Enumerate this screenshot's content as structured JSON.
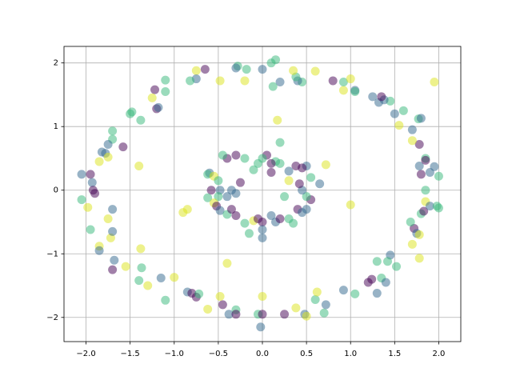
{
  "chart_data": {
    "type": "scatter",
    "grid": true,
    "alpha": 0.5,
    "xlim": [
      -2.25,
      2.25
    ],
    "ylim": [
      -2.38,
      2.26
    ],
    "xticks": [
      {
        "value": -2.0,
        "label": "−2.0"
      },
      {
        "value": -1.5,
        "label": "−1.5"
      },
      {
        "value": -1.0,
        "label": "−1.0"
      },
      {
        "value": -0.5,
        "label": "−0.5"
      },
      {
        "value": 0.0,
        "label": "0.0"
      },
      {
        "value": 0.5,
        "label": "0.5"
      },
      {
        "value": 1.0,
        "label": "1.0"
      },
      {
        "value": 1.5,
        "label": "1.5"
      },
      {
        "value": 2.0,
        "label": "2.0"
      }
    ],
    "yticks": [
      {
        "value": -2,
        "label": "−2"
      },
      {
        "value": -1,
        "label": "−1"
      },
      0,
      1,
      2
    ],
    "x": [
      -2.05,
      -1.95,
      -1.93,
      -1.92,
      -1.9,
      -2.05,
      -1.98,
      -1.95,
      -1.85,
      -1.85,
      -1.72,
      -1.7,
      -1.7,
      -1.75,
      -1.68,
      -1.7,
      -1.55,
      -1.4,
      -1.38,
      -1.37,
      -1.3,
      -1.15,
      -1.1,
      -1.0,
      -0.85,
      -0.8,
      -0.75,
      -0.72,
      -0.62,
      -0.45,
      -0.48,
      -0.38,
      -0.3,
      -0.3,
      -0.05,
      0.0,
      0.0,
      -0.02,
      0.25,
      0.38,
      0.48,
      0.5,
      0.6,
      0.62,
      0.7,
      0.72,
      0.92,
      1.05,
      1.2,
      1.24,
      1.3,
      1.35,
      1.4,
      1.45,
      1.42,
      1.3,
      1.52,
      1.7,
      1.72,
      1.75,
      1.78,
      1.78,
      1.68,
      1.8,
      1.83,
      1.85,
      1.9,
      2.0,
      1.98,
      1.85,
      1.9,
      1.95,
      2.0,
      1.8,
      1.78,
      1.85,
      1.85,
      1.78,
      1.7,
      1.7,
      1.77,
      1.8,
      1.55,
      1.6,
      1.5,
      1.45,
      1.38,
      1.32,
      1.25,
      1.35,
      1.05,
      1.05,
      0.92,
      0.92,
      1.0,
      0.8,
      1.95,
      0.6,
      0.45,
      0.4,
      0.38,
      0.35,
      0.2,
      0.15,
      0.1,
      0.0,
      0.12,
      -0.18,
      -0.28,
      -0.3,
      -0.2,
      -0.48,
      -0.65,
      -0.75,
      -0.75,
      -0.82,
      -1.1,
      -1.1,
      -1.2,
      -1.18,
      -1.22,
      -1.25,
      -1.38,
      -1.5,
      -1.48,
      -1.58,
      -1.7,
      -1.7,
      -1.75,
      -1.82,
      -1.78,
      -1.75,
      -1.85,
      -1.4,
      0.17,
      -0.9,
      -0.85,
      -0.4,
      1.0,
      0.72,
      -0.6,
      -0.62,
      -0.55,
      -0.5,
      -0.58,
      -0.48,
      -0.5,
      -0.62,
      -0.55,
      -0.52,
      -0.48,
      -0.4,
      -0.35,
      -0.3,
      -0.2,
      -0.1,
      -0.05,
      0.0,
      0.0,
      0.0,
      -0.15,
      0.1,
      0.15,
      0.2,
      0.3,
      0.35,
      0.4,
      0.45,
      0.5,
      0.55,
      0.5,
      0.45,
      0.42,
      0.55,
      0.5,
      0.45,
      0.38,
      0.3,
      0.2,
      0.15,
      0.1,
      0.05,
      0.0,
      -0.05,
      -0.1,
      -0.2,
      -0.3,
      -0.4,
      -0.45,
      -0.25,
      -0.3,
      0.2,
      0.1,
      -0.35,
      0.25,
      0.3,
      0.65,
      -0.4
    ],
    "y": [
      0.25,
      0.25,
      0.12,
      0.0,
      -0.05,
      -0.15,
      -0.27,
      -0.62,
      -0.88,
      -0.95,
      -0.75,
      -0.65,
      -0.3,
      -0.45,
      -1.1,
      -1.25,
      -1.2,
      -1.42,
      -0.92,
      -1.22,
      -1.5,
      -1.38,
      -1.73,
      -1.37,
      -1.6,
      -1.62,
      -1.68,
      -1.63,
      -1.87,
      -1.8,
      -1.67,
      -1.95,
      -1.88,
      -1.95,
      -1.95,
      -1.67,
      -1.95,
      -2.15,
      -1.95,
      -1.85,
      -1.95,
      -1.98,
      -1.72,
      -1.6,
      -1.93,
      -1.8,
      -1.57,
      -1.63,
      -1.45,
      -1.4,
      -1.62,
      -1.38,
      -1.45,
      -1.02,
      -1.12,
      -1.12,
      -1.2,
      -0.85,
      -0.6,
      -0.68,
      -0.7,
      -1.07,
      -0.5,
      -0.37,
      -0.33,
      -0.18,
      -0.25,
      -0.28,
      -0.25,
      0.0,
      0.28,
      0.37,
      0.22,
      0.25,
      0.38,
      0.5,
      0.47,
      0.72,
      0.78,
      0.95,
      1.12,
      1.13,
      1.02,
      1.25,
      1.2,
      1.4,
      1.42,
      1.38,
      1.47,
      1.47,
      1.57,
      1.55,
      1.57,
      1.7,
      1.75,
      1.72,
      1.7,
      1.87,
      1.7,
      1.72,
      1.78,
      1.88,
      1.7,
      2.05,
      2.0,
      1.9,
      1.63,
      1.9,
      1.95,
      1.92,
      1.72,
      1.72,
      1.9,
      1.88,
      1.75,
      1.72,
      1.73,
      1.55,
      1.28,
      1.3,
      1.58,
      1.45,
      1.1,
      1.2,
      1.23,
      0.68,
      0.93,
      0.8,
      0.72,
      0.6,
      0.58,
      0.52,
      0.45,
      0.38,
      1.1,
      -0.35,
      -0.3,
      -1.15,
      -0.23,
      0.4,
      0.27,
      0.25,
      0.22,
      0.15,
      0.0,
      0.0,
      -0.1,
      -0.12,
      -0.2,
      -0.25,
      -0.32,
      -0.38,
      -0.3,
      -0.4,
      -0.52,
      -0.48,
      -0.45,
      -0.5,
      -0.75,
      -0.62,
      -0.68,
      -0.4,
      -0.5,
      -0.45,
      -0.45,
      -0.52,
      -0.3,
      -0.35,
      -0.3,
      -0.15,
      -0.1,
      0.0,
      0.1,
      0.2,
      0.38,
      0.35,
      0.38,
      0.3,
      0.42,
      0.45,
      0.42,
      0.55,
      0.5,
      0.42,
      0.32,
      0.5,
      0.55,
      0.5,
      0.55,
      0.12,
      -0.05,
      0.75,
      0.28,
      0.0,
      -0.1,
      0.15,
      0.1,
      -0.1
    ],
    "colors": [
      "#31688e",
      "#440154",
      "#31688e",
      "#440154",
      "#440154",
      "#35b779",
      "#dce319",
      "#35b779",
      "#dce319",
      "#31688e",
      "#dce319",
      "#31688e",
      "#31688e",
      "#dce319",
      "#31688e",
      "#440154",
      "#dce319",
      "#35b779",
      "#dce319",
      "#35b779",
      "#dce319",
      "#31688e",
      "#35b779",
      "#dce319",
      "#31688e",
      "#440154",
      "#440154",
      "#35b779",
      "#dce319",
      "#440154",
      "#dce319",
      "#31688e",
      "#35b779",
      "#440154",
      "#35b779",
      "#dce319",
      "#440154",
      "#31688e",
      "#440154",
      "#dce319",
      "#31688e",
      "#dce319",
      "#35b779",
      "#dce319",
      "#35b779",
      "#31688e",
      "#31688e",
      "#35b779",
      "#440154",
      "#440154",
      "#31688e",
      "#35b779",
      "#31688e",
      "#31688e",
      "#35b779",
      "#35b779",
      "#35b779",
      "#dce319",
      "#440154",
      "#31688e",
      "#dce319",
      "#dce319",
      "#35b779",
      "#35b779",
      "#440154",
      "#dce319",
      "#31688e",
      "#35b779",
      "#35b779",
      "#35b779",
      "#31688e",
      "#31688e",
      "#35b779",
      "#440154",
      "#31688e",
      "#35b779",
      "#440154",
      "#440154",
      "#dce319",
      "#31688e",
      "#35b779",
      "#31688e",
      "#dce319",
      "#35b779",
      "#31688e",
      "#35b779",
      "#31688e",
      "#31688e",
      "#31688e",
      "#440154",
      "#31688e",
      "#35b779",
      "#dce319",
      "#35b779",
      "#dce319",
      "#440154",
      "#dce319",
      "#dce319",
      "#35b779",
      "#31688e",
      "#35b779",
      "#dce319",
      "#31688e",
      "#35b779",
      "#35b779",
      "#31688e",
      "#35b779",
      "#35b779",
      "#35b779",
      "#31688e",
      "#dce319",
      "#dce319",
      "#440154",
      "#dce319",
      "#31688e",
      "#35b779",
      "#35b779",
      "#35b779",
      "#440154",
      "#31688e",
      "#440154",
      "#dce319",
      "#35b779",
      "#35b779",
      "#35b779",
      "#440154",
      "#35b779",
      "#35b779",
      "#31688e",
      "#31688e",
      "#31688e",
      "#dce319",
      "#dce319",
      "#dce319",
      "#dce319",
      "#dce319",
      "#dce319",
      "#dce319",
      "#dce319",
      "#dce319",
      "#31688e",
      "#35b779",
      "#dce319",
      "#35b779",
      "#440154",
      "#31688e",
      "#35b779",
      "#35b779",
      "#dce319",
      "#440154",
      "#31688e",
      "#35b779",
      "#440154",
      "#440154",
      "#35b779",
      "#dce319",
      "#440154",
      "#440154",
      "#31688e",
      "#31688e",
      "#35b779",
      "#31688e",
      "#31688e",
      "#440154",
      "#35b779",
      "#35b779",
      "#440154",
      "#31688e",
      "#31688e",
      "#440154",
      "#35b779",
      "#31688e",
      "#440154",
      "#35b779",
      "#31688e",
      "#440154",
      "#440154",
      "#31688e",
      "#35b779",
      "#35b779",
      "#440154",
      "#440154",
      "#35b779",
      "#35b779",
      "#35b779",
      "#35b779",
      "#440154",
      "#440154",
      "#35b779",
      "#440154",
      "#31688e",
      "#35b779",
      "#440154",
      "#31688e",
      "#35b779",
      "#dce319",
      "#31688e",
      "#31688e"
    ]
  }
}
